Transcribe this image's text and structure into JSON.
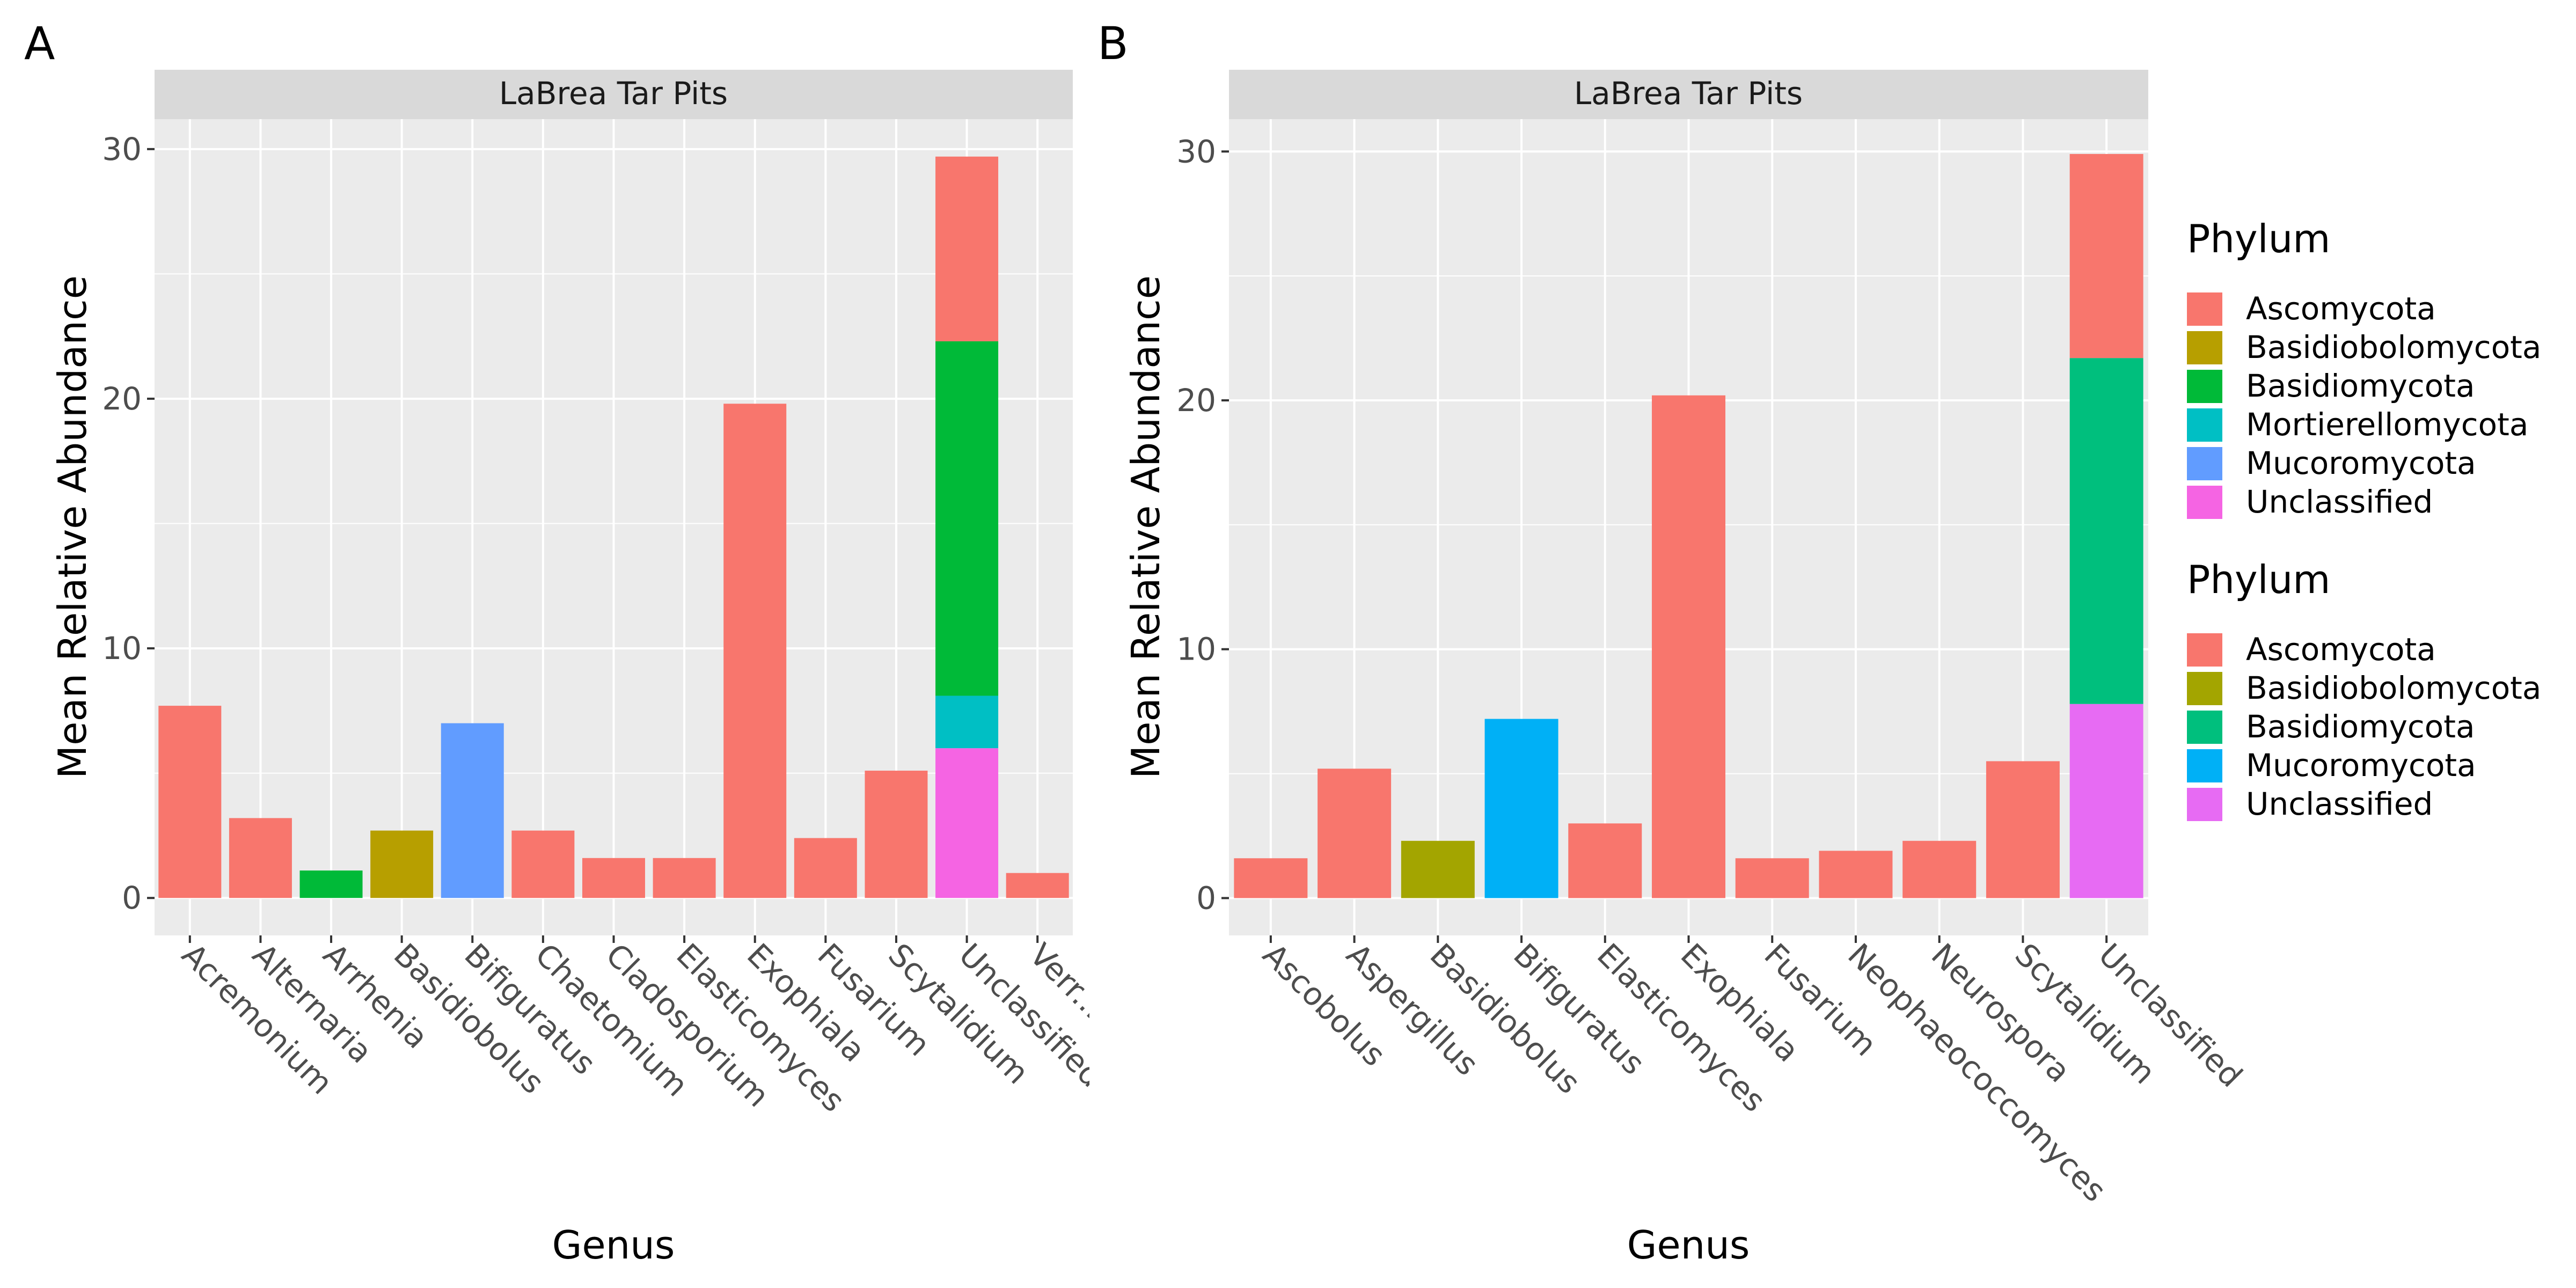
{
  "chart_data": [
    {
      "type": "bar",
      "stacked": true,
      "panel_tag": "A",
      "facet_label": "LaBrea Tar Pits",
      "xlabel": "Genus",
      "ylabel": "Mean Relative Abundance",
      "ylim": [
        -1.5,
        31.2
      ],
      "yticks": [
        0,
        10,
        20,
        30
      ],
      "grid": true,
      "categories": [
        "Acremonium",
        "Alternaria",
        "Arrhenia",
        "Basidiobolus",
        "Bifiguratus",
        "Chaetomium",
        "Cladosporium",
        "Elasticomyces",
        "Exophiala",
        "Fusarium",
        "Scytalidium",
        "Unclassified",
        "Verr..."
      ],
      "series": [
        {
          "name": "Ascomycota",
          "color": "#F8766D",
          "values": [
            7.7,
            3.2,
            0,
            0,
            0,
            2.7,
            1.6,
            1.6,
            19.8,
            2.4,
            5.1,
            7.4,
            1.0
          ]
        },
        {
          "name": "Basidiobolomycota",
          "color": "#B79F00",
          "values": [
            0,
            0,
            0,
            2.7,
            0,
            0,
            0,
            0,
            0,
            0,
            0,
            0,
            0
          ]
        },
        {
          "name": "Basidiomycota",
          "color": "#00BA38",
          "values": [
            0,
            0,
            1.1,
            0,
            0,
            0,
            0,
            0,
            0,
            0,
            0,
            14.2,
            0
          ]
        },
        {
          "name": "Mortierellomycota",
          "color": "#00BFC4",
          "values": [
            0,
            0,
            0,
            0,
            0,
            0,
            0,
            0,
            0,
            0,
            0,
            2.1,
            0
          ]
        },
        {
          "name": "Mucoromycota",
          "color": "#619CFF",
          "values": [
            0,
            0,
            0,
            0,
            7.0,
            0,
            0,
            0,
            0,
            0,
            0,
            0,
            0
          ]
        },
        {
          "name": "Unclassified",
          "color": "#F564E3",
          "values": [
            0,
            0,
            0,
            0,
            0,
            0,
            0,
            0,
            0,
            0,
            0,
            6.0,
            0
          ]
        }
      ],
      "stack_order": [
        "Unclassified",
        "Mucoromycota",
        "Mortierellomycota",
        "Basidiomycota",
        "Basidiobolomycota",
        "Ascomycota"
      ]
    },
    {
      "type": "bar",
      "stacked": true,
      "panel_tag": "B",
      "facet_label": "LaBrea Tar Pits",
      "xlabel": "Genus",
      "ylabel": "Mean Relative Abundance",
      "ylim": [
        -1.5,
        31.3
      ],
      "yticks": [
        0,
        10,
        20,
        30
      ],
      "grid": true,
      "categories": [
        "Ascobolus",
        "Aspergillus",
        "Basidiobolus",
        "Bifiguratus",
        "Elasticomyces",
        "Exophiala",
        "Fusarium",
        "Neophaeococcomyces",
        "Neurospora",
        "Scytalidium",
        "Unclassified"
      ],
      "series": [
        {
          "name": "Ascomycota",
          "color": "#F8766D",
          "values": [
            1.6,
            5.2,
            0,
            0,
            3.0,
            20.2,
            1.6,
            1.9,
            2.3,
            5.5,
            8.2
          ]
        },
        {
          "name": "Basidiobolomycota",
          "color": "#A3A500",
          "values": [
            0,
            0,
            2.3,
            0,
            0,
            0,
            0,
            0,
            0,
            0,
            0
          ]
        },
        {
          "name": "Basidiomycota",
          "color": "#00BF7D",
          "values": [
            0,
            0,
            0,
            0,
            0,
            0,
            0,
            0,
            0,
            0,
            13.9
          ]
        },
        {
          "name": "Mucoromycota",
          "color": "#00B0F6",
          "values": [
            0,
            0,
            0,
            7.2,
            0,
            0,
            0,
            0,
            0,
            0,
            0
          ]
        },
        {
          "name": "Unclassified",
          "color": "#E76BF3",
          "values": [
            0,
            0,
            0,
            0,
            0,
            0,
            0,
            0,
            0,
            0,
            7.8
          ]
        }
      ],
      "stack_order": [
        "Unclassified",
        "Mucoromycota",
        "Basidiomycota",
        "Basidiobolomycota",
        "Ascomycota"
      ]
    }
  ],
  "legends": [
    {
      "title": "Phylum",
      "items": [
        {
          "label": "Ascomycota",
          "color": "#F8766D"
        },
        {
          "label": "Basidiobolomycota",
          "color": "#B79F00"
        },
        {
          "label": "Basidiomycota",
          "color": "#00BA38"
        },
        {
          "label": "Mortierellomycota",
          "color": "#00BFC4"
        },
        {
          "label": "Mucoromycota",
          "color": "#619CFF"
        },
        {
          "label": "Unclassified",
          "color": "#F564E3"
        }
      ]
    },
    {
      "title": "Phylum",
      "items": [
        {
          "label": "Ascomycota",
          "color": "#F8766D"
        },
        {
          "label": "Basidiobolomycota",
          "color": "#A3A500"
        },
        {
          "label": "Basidiomycota",
          "color": "#00BF7D"
        },
        {
          "label": "Mucoromycota",
          "color": "#00B0F6"
        },
        {
          "label": "Unclassified",
          "color": "#E76BF3"
        }
      ]
    }
  ],
  "colors": {
    "panel_bg": "#EBEBEB",
    "strip_bg": "#D9D9D9",
    "grid": "#FFFFFF",
    "axis_text": "#4D4D4D",
    "tick": "#333333"
  }
}
